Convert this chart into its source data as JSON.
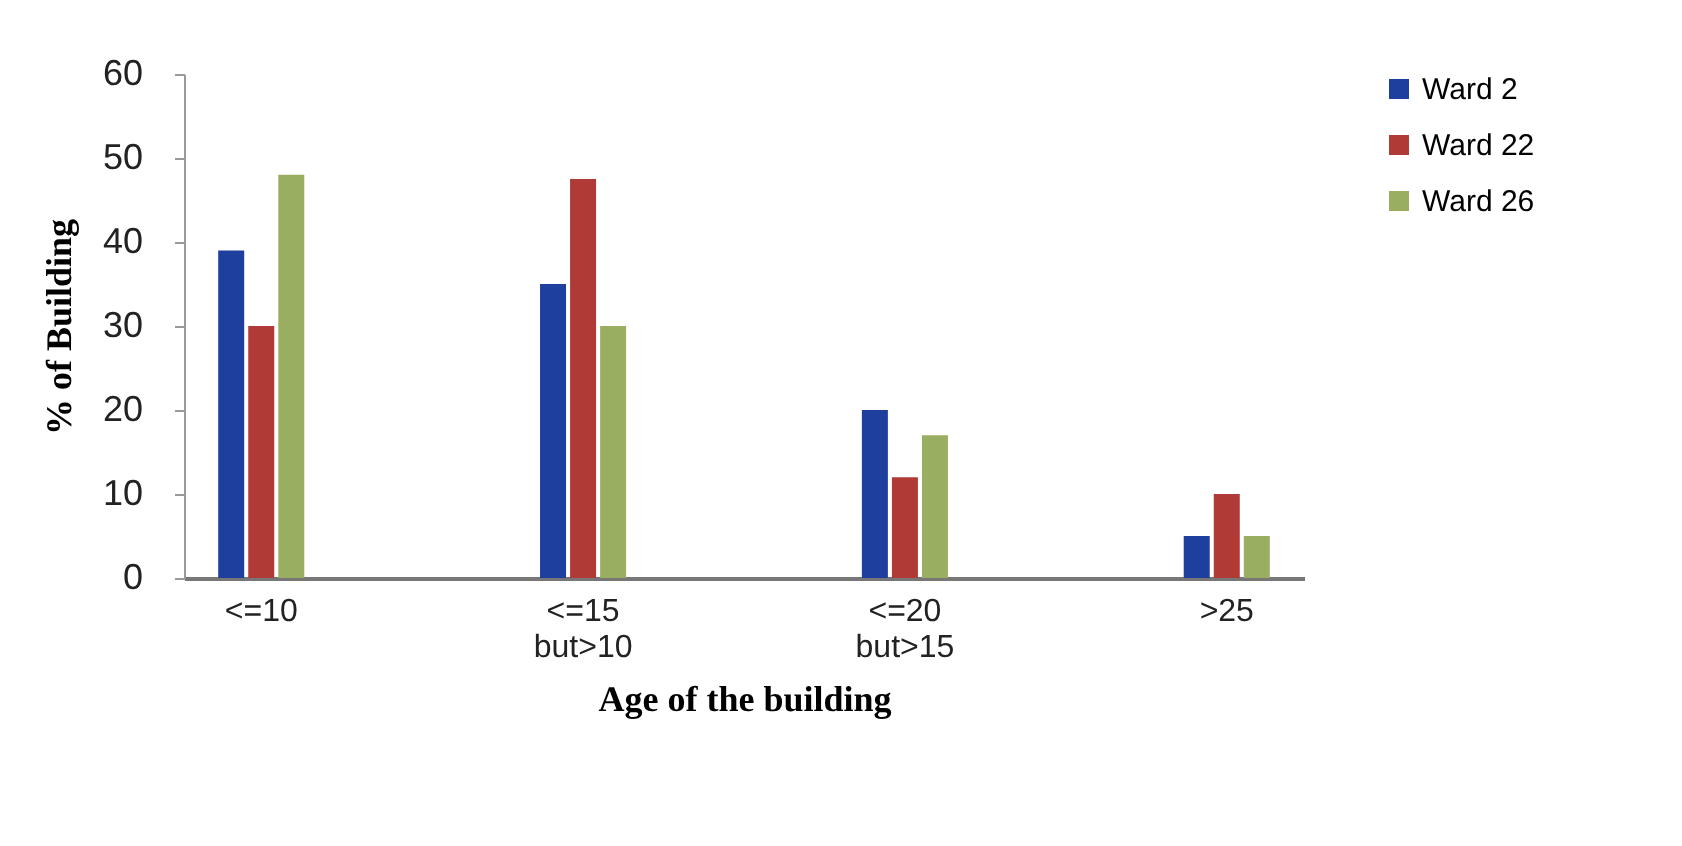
{
  "chart_data": {
    "type": "bar",
    "xlabel": "Age of the building",
    "ylabel": "% of Building",
    "categories": [
      "<=10",
      "<=15\nbut>10",
      "<=20\nbut>15",
      ">25"
    ],
    "series": [
      {
        "name": "Ward 2",
        "color": "#1f3f9f",
        "values": [
          39,
          35,
          20,
          5
        ]
      },
      {
        "name": "Ward 22",
        "color": "#b03a35",
        "values": [
          30,
          47.5,
          12,
          10
        ]
      },
      {
        "name": "Ward 26",
        "color": "#9aae62",
        "values": [
          48,
          30,
          17,
          5
        ]
      }
    ],
    "ylim": [
      0,
      60
    ],
    "yticks": [
      0,
      10,
      20,
      30,
      40,
      50,
      60
    ],
    "grid": false,
    "legend": "right"
  }
}
